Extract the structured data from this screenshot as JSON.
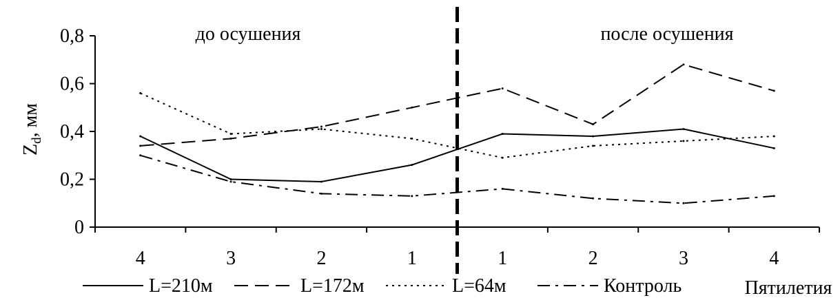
{
  "chart_data": {
    "type": "line",
    "ylabel": "Z",
    "ylabel_sub": "d",
    "ylabel_unit": ", мм",
    "xlabel": "Пятилетия",
    "ylim": [
      0,
      0.8
    ],
    "yticks": [
      "0",
      "0,2",
      "0,4",
      "0,6",
      "0,8"
    ],
    "categories": [
      "4",
      "3",
      "2",
      "1",
      "1",
      "2",
      "3",
      "4"
    ],
    "annotations": {
      "before": "до осушения",
      "after": "после осушения"
    },
    "grid": false,
    "legend_position": "bottom",
    "series": [
      {
        "name": "L=210м",
        "style": "solid",
        "values": [
          0.38,
          0.2,
          0.19,
          0.26,
          0.39,
          0.38,
          0.41,
          0.33
        ],
        "divider_value": 0.325
      },
      {
        "name": "L=172м",
        "style": "dashed",
        "values": [
          0.34,
          0.37,
          0.42,
          0.5,
          0.58,
          0.43,
          0.68,
          0.57
        ],
        "divider_value": 0.54
      },
      {
        "name": "L=64м",
        "style": "dotted",
        "values": [
          0.56,
          0.39,
          0.41,
          0.37,
          0.29,
          0.34,
          0.36,
          0.38
        ],
        "divider_value": 0.33
      },
      {
        "name": "Контроль",
        "style": "dashdot",
        "values": [
          0.3,
          0.19,
          0.14,
          0.13,
          0.16,
          0.12,
          0.1,
          0.13
        ],
        "divider_value": 0.145
      }
    ],
    "colors": {
      "line": "#000000",
      "axis": "#000000"
    }
  }
}
